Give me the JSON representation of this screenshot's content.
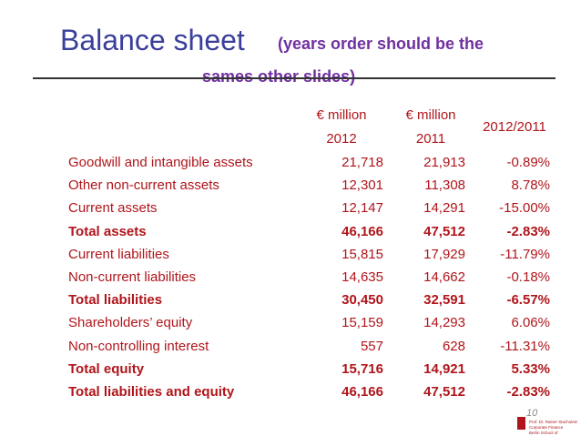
{
  "header": {
    "title": "Balance sheet",
    "subtitle_line1": "(years order should be the",
    "subtitle_line2": "sames other slides)"
  },
  "table": {
    "columns": [
      {
        "line1": "€ million",
        "line2": "2012"
      },
      {
        "line1": "€ million",
        "line2": "2011"
      },
      {
        "line1": "2012/2011"
      }
    ],
    "rows": [
      {
        "cells": [
          "Goodwill and intangible assets",
          "21,718",
          "21,913",
          "-0.89%"
        ],
        "bold": false
      },
      {
        "cells": [
          "Other non-current assets",
          "12,301",
          "11,308",
          "8.78%"
        ],
        "bold": false
      },
      {
        "cells": [
          "Current assets",
          "12,147",
          "14,291",
          "-15.00%"
        ],
        "bold": false
      },
      {
        "cells": [
          "Total assets",
          "46,166",
          "47,512",
          "-2.83%"
        ],
        "bold": true
      },
      {
        "cells": [
          "Current liabilities",
          "15,815",
          "17,929",
          "-11.79%"
        ],
        "bold": false
      },
      {
        "cells": [
          "Non-current liabilities",
          "14,635",
          "14,662",
          "-0.18%"
        ],
        "bold": false
      },
      {
        "cells": [
          "Total liabilities",
          "30,450",
          "32,591",
          "-6.57%"
        ],
        "bold": true
      },
      {
        "cells": [
          "Shareholders’ equity",
          "15,159",
          "14,293",
          "6.06%"
        ],
        "bold": false
      },
      {
        "cells": [
          "Non-controlling interest",
          "557",
          "628",
          "-11.31%"
        ],
        "bold": false
      },
      {
        "cells": [
          "Total equity",
          "15,716",
          "14,921",
          "5.33%"
        ],
        "bold": true
      },
      {
        "cells": [
          "Total liabilities and equity",
          "46,166",
          "47,512",
          "-2.83%"
        ],
        "bold": true
      }
    ]
  },
  "footer": {
    "page": "10",
    "logo_lines": [
      "Prof. Dr. Rainer Stachuletz",
      "Corporate Finance",
      "Berlin School of"
    ]
  }
}
